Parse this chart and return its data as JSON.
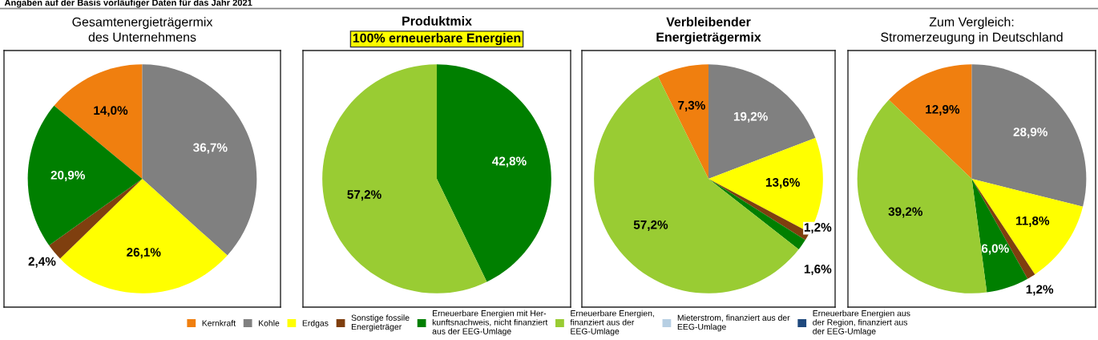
{
  "chart_data": [
    {
      "type": "pie",
      "title": "Gesamtenergieträgermix\ndes Unternehmens",
      "annotations": [
        "Angaben auf der Basis vorläufiger Daten für das Jahr 2021"
      ],
      "legend": "bottom",
      "categories": [
        "Kernkraft",
        "Kohle",
        "Erdgas",
        "Sonstige fossile\nEnergieträger",
        "Erneuerbare Energien mit Her-\nkunftsnachweis, nicht finanziert\naus der EEG-Umlage",
        "Erneuerbare Energien,\nfinanziert aus der\nEEG-Umlage",
        "Mieterstrom, finanziert aus der\nEEG-Umlage",
        "Erneuerbare Energien aus\nder Region, finanziert aus\nder EEG-Umlage"
      ],
      "values": [
        14.0,
        36.7,
        26.1,
        2.4,
        20.9,
        0,
        0,
        0
      ],
      "value_labels": [
        "14,0%",
        "36,7%",
        "26,1%",
        "2,4%",
        "20,9%",
        null,
        null,
        null
      ],
      "colors": [
        "#f07f0f",
        "#808080",
        "#ffff00",
        "#7f3f0f",
        "#007f00",
        "#99cc33",
        "#b7cfe3",
        "#1f497d"
      ]
    },
    {
      "type": "pie",
      "title": "Produktmix",
      "subtitle": "100% erneuerbare Energien",
      "categories": [
        null,
        null,
        null,
        null,
        null,
        null,
        null,
        null
      ],
      "values": [
        0,
        0,
        0,
        0,
        42.8,
        57.2,
        0,
        0
      ],
      "value_labels": [
        null,
        null,
        null,
        null,
        "42,8%",
        "57,2%",
        null,
        null
      ],
      "colors": [
        "#f07f0f",
        "#808080",
        "#ffff00",
        "#7f3f0f",
        "#007f00",
        "#99cc33",
        "#b7cfe3",
        "#1f497d"
      ]
    },
    {
      "type": "pie",
      "title": "Verbleibender\nEnergieträgermix",
      "categories": [
        null,
        null,
        null,
        null,
        null,
        null,
        null,
        null
      ],
      "values": [
        7.3,
        19.2,
        13.6,
        1.2,
        1.6,
        57.2,
        0,
        0
      ],
      "value_labels": [
        "7,3%",
        "19,2%",
        "13,6%",
        "1,2%",
        "1,6%",
        "57,2%",
        null,
        null
      ],
      "colors": [
        "#f07f0f",
        "#808080",
        "#ffff00",
        "#7f3f0f",
        "#007f00",
        "#99cc33",
        "#b7cfe3",
        "#1f497d"
      ]
    },
    {
      "type": "pie",
      "title": "Zum Vergleich:\nStromerzeugung in Deutschland",
      "categories": [
        null,
        null,
        null,
        null,
        null,
        null,
        null,
        null
      ],
      "values": [
        12.9,
        28.9,
        11.8,
        1.2,
        6.0,
        39.2,
        0,
        0
      ],
      "value_labels": [
        "12,9%",
        "28,9%",
        "11,8%",
        "1,2%",
        "6,0%",
        "39,2%",
        null,
        null
      ],
      "colors": [
        "#f07f0f",
        "#808080",
        "#ffff00",
        "#7f3f0f",
        "#007f00",
        "#99cc33",
        "#b7cfe3",
        "#1f497d"
      ]
    }
  ]
}
